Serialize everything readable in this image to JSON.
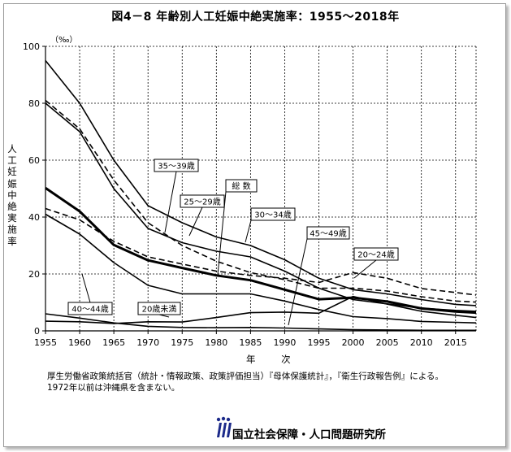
{
  "chart_data": {
    "type": "line",
    "title": "図4－8 年齢別人工妊娠中絶実施率：1955～2018年",
    "unit_label": "（‰）",
    "ylabel": "人工妊娠中絶実施率",
    "xlabel": "年 次",
    "xlim": [
      1955,
      2018
    ],
    "ylim": [
      0,
      100
    ],
    "x_ticks": [
      1955,
      1960,
      1965,
      1970,
      1975,
      1980,
      1985,
      1990,
      1995,
      2000,
      2005,
      2010,
      2015
    ],
    "y_ticks": [
      0,
      20,
      40,
      60,
      80,
      100
    ],
    "grid": true,
    "x": [
      1955,
      1960,
      1965,
      1970,
      1975,
      1980,
      1985,
      1990,
      1995,
      2000,
      2005,
      2010,
      2015,
      2018
    ],
    "series": [
      {
        "name": "総 数",
        "style": "thick",
        "values": [
          50.2,
          42.0,
          30.2,
          24.8,
          22.1,
          19.5,
          17.8,
          14.5,
          11.1,
          11.7,
          10.3,
          7.9,
          6.8,
          6.4
        ]
      },
      {
        "name": "20歳未満",
        "style": "solid",
        "values": [
          3.4,
          3.2,
          2.6,
          3.2,
          3.1,
          4.7,
          6.4,
          6.6,
          6.2,
          12.1,
          9.4,
          6.9,
          5.5,
          4.7
        ]
      },
      {
        "name": "20～24歳",
        "style": "dashed",
        "values": [
          43.0,
          39.0,
          31.5,
          26.0,
          23.5,
          21.0,
          19.5,
          18.5,
          17.0,
          20.5,
          18.5,
          14.9,
          13.5,
          12.6
        ]
      },
      {
        "name": "25～29歳",
        "style": "dashed",
        "values": [
          81.0,
          71.0,
          53.0,
          38.0,
          30.0,
          24.5,
          20.5,
          18.0,
          15.0,
          15.0,
          14.0,
          12.0,
          10.5,
          10.1
        ]
      },
      {
        "name": "30～34歳",
        "style": "solid",
        "values": [
          95.0,
          80.0,
          60.0,
          44.0,
          38.0,
          33.0,
          30.0,
          25.0,
          18.5,
          14.5,
          13.0,
          11.0,
          9.3,
          8.9
        ]
      },
      {
        "name": "35～39歳",
        "style": "solid",
        "values": [
          80.0,
          70.0,
          50.0,
          36.0,
          31.0,
          28.0,
          26.0,
          21.0,
          15.0,
          11.0,
          9.5,
          8.0,
          7.2,
          6.9
        ]
      },
      {
        "name": "40～44歳",
        "style": "solid",
        "values": [
          41.0,
          34.0,
          24.0,
          16.0,
          13.0,
          13.0,
          13.0,
          10.5,
          7.5,
          5.0,
          4.3,
          3.3,
          3.0,
          2.8
        ]
      },
      {
        "name": "45～49歳",
        "style": "solid",
        "values": [
          6.0,
          4.5,
          2.8,
          1.6,
          1.2,
          1.1,
          1.2,
          1.0,
          0.7,
          0.4,
          0.3,
          0.2,
          0.2,
          0.2
        ]
      }
    ],
    "annotations": [
      "35～39歳",
      "25～29歳",
      "総 数",
      "30～34歳",
      "45～49歳",
      "20～24歳",
      "40～44歳",
      "20歳未満"
    ]
  },
  "notes": [
    "厚生労働省政策統括官（統計・情報政策、政策評価担当）『母体保護統計』，『衛生行政報告例』による。",
    "1972年以前は沖縄県を含まない。"
  ],
  "organization": "国立社会保障・人口問題研究所",
  "logo_icon": "ipss-logo-icon"
}
